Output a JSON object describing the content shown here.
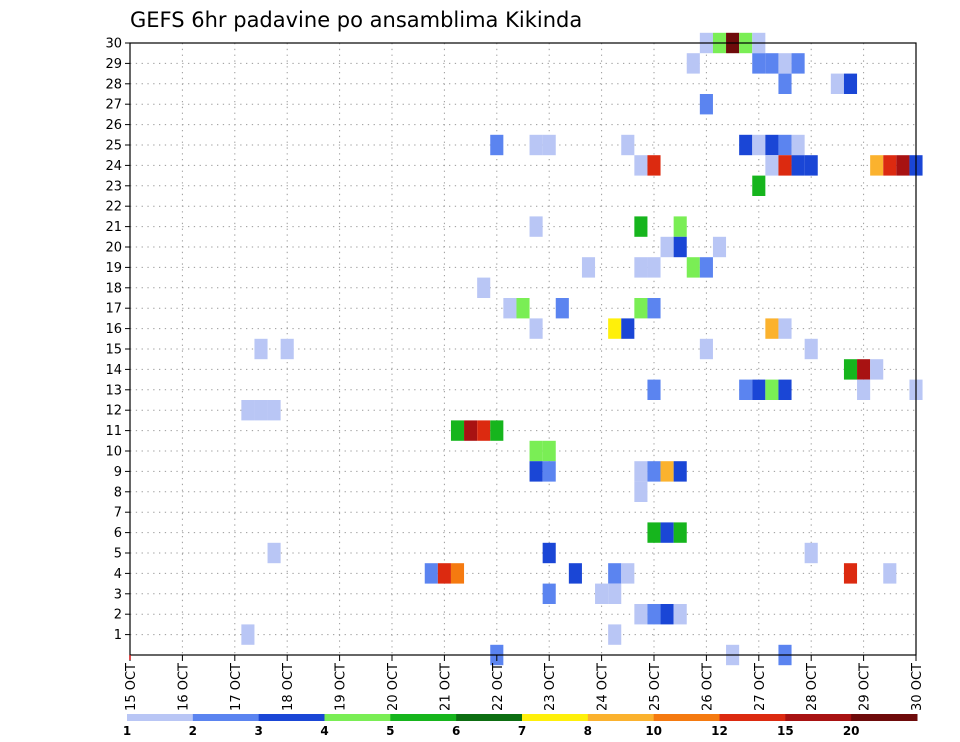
{
  "chart_data": {
    "type": "heatmap",
    "title": "GEFS 6hr padavine po ansamblima Kikinda",
    "xlabel": "",
    "ylabel": "",
    "grid": true,
    "y_tick_labels": [
      "1",
      "2",
      "3",
      "4",
      "5",
      "6",
      "7",
      "8",
      "9",
      "10",
      "11",
      "12",
      "13",
      "14",
      "15",
      "16",
      "17",
      "18",
      "19",
      "20",
      "21",
      "22",
      "23",
      "24",
      "25",
      "26",
      "27",
      "28",
      "29",
      "30"
    ],
    "ylim": [
      0,
      30
    ],
    "x_tick_labels": [
      "15 OCT",
      "16 OCT",
      "17 OCT",
      "18 OCT",
      "19 OCT",
      "20 OCT",
      "21 OCT",
      "22 OCT",
      "23 OCT",
      "24 OCT",
      "25 OCT",
      "26 OCT",
      "27 OCT",
      "28 OCT",
      "29 OCT",
      "30 OCT"
    ],
    "xlim_days": [
      15,
      30
    ],
    "colors": [
      "#b9c6f5",
      "#5b84f0",
      "#1a46d6",
      "#7aee55",
      "#16b51d",
      "#0d6e12",
      "#fff00a",
      "#fbb22e",
      "#f57a10",
      "#dc2a10",
      "#a81212",
      "#6e0b0b"
    ],
    "legend": {
      "labels": [
        "1",
        "2",
        "3",
        "4",
        "5",
        "6",
        "7",
        "8",
        "10",
        "12",
        "15",
        "20"
      ],
      "position": "bottom"
    },
    "cells": [
      [
        26.0,
        30,
        1
      ],
      [
        26.25,
        30,
        4
      ],
      [
        26.5,
        30,
        12
      ],
      [
        26.75,
        30,
        4
      ],
      [
        27.0,
        30,
        1
      ],
      [
        25.75,
        29,
        1
      ],
      [
        27.0,
        29,
        2
      ],
      [
        27.25,
        29,
        2
      ],
      [
        27.5,
        29,
        1
      ],
      [
        27.75,
        29,
        2
      ],
      [
        27.5,
        28,
        2
      ],
      [
        28.5,
        28,
        1
      ],
      [
        28.75,
        28,
        3
      ],
      [
        26.0,
        27,
        2
      ],
      [
        22.0,
        25,
        2
      ],
      [
        22.75,
        25,
        1
      ],
      [
        23.0,
        25,
        1
      ],
      [
        24.5,
        25,
        1
      ],
      [
        26.75,
        25,
        3
      ],
      [
        27.0,
        25,
        1
      ],
      [
        27.25,
        25,
        3
      ],
      [
        27.5,
        25,
        2
      ],
      [
        27.75,
        25,
        1
      ],
      [
        24.75,
        24,
        1
      ],
      [
        25.0,
        24,
        10
      ],
      [
        27.25,
        24,
        1
      ],
      [
        27.5,
        24,
        10
      ],
      [
        27.75,
        24,
        3
      ],
      [
        28.0,
        24,
        3
      ],
      [
        29.25,
        24,
        8
      ],
      [
        29.5,
        24,
        10
      ],
      [
        29.75,
        24,
        11
      ],
      [
        30.0,
        24,
        3
      ],
      [
        27.0,
        23,
        5
      ],
      [
        22.75,
        21,
        1
      ],
      [
        24.75,
        21,
        5
      ],
      [
        25.5,
        21,
        4
      ],
      [
        25.25,
        20,
        1
      ],
      [
        25.5,
        20,
        3
      ],
      [
        26.25,
        20,
        1
      ],
      [
        23.75,
        19,
        1
      ],
      [
        24.75,
        19,
        1
      ],
      [
        25.0,
        19,
        1
      ],
      [
        25.75,
        19,
        4
      ],
      [
        26.0,
        19,
        2
      ],
      [
        21.75,
        18,
        1
      ],
      [
        22.25,
        17,
        1
      ],
      [
        22.5,
        17,
        4
      ],
      [
        23.25,
        17,
        2
      ],
      [
        24.75,
        17,
        4
      ],
      [
        25.0,
        17,
        2
      ],
      [
        22.75,
        16,
        1
      ],
      [
        24.25,
        16,
        7
      ],
      [
        24.5,
        16,
        3
      ],
      [
        27.25,
        16,
        8
      ],
      [
        27.5,
        16,
        1
      ],
      [
        17.5,
        15,
        1
      ],
      [
        18.0,
        15,
        1
      ],
      [
        26.0,
        15,
        1
      ],
      [
        28.0,
        15,
        1
      ],
      [
        28.75,
        14,
        5
      ],
      [
        29.0,
        14,
        11
      ],
      [
        29.25,
        14,
        1
      ],
      [
        25.0,
        13,
        2
      ],
      [
        26.75,
        13,
        2
      ],
      [
        27.0,
        13,
        3
      ],
      [
        27.25,
        13,
        4
      ],
      [
        27.5,
        13,
        3
      ],
      [
        29.0,
        13,
        1
      ],
      [
        30.0,
        13,
        1
      ],
      [
        17.25,
        12,
        1
      ],
      [
        17.5,
        12,
        1
      ],
      [
        17.75,
        12,
        1
      ],
      [
        21.25,
        11,
        5
      ],
      [
        21.5,
        11,
        11
      ],
      [
        21.75,
        11,
        10
      ],
      [
        22.0,
        11,
        5
      ],
      [
        22.75,
        10,
        4
      ],
      [
        23.0,
        10,
        4
      ],
      [
        22.75,
        9,
        3
      ],
      [
        23.0,
        9,
        2
      ],
      [
        24.75,
        9,
        1
      ],
      [
        25.0,
        9,
        2
      ],
      [
        25.25,
        9,
        8
      ],
      [
        25.5,
        9,
        3
      ],
      [
        24.75,
        8,
        1
      ],
      [
        25.0,
        6,
        5
      ],
      [
        25.25,
        6,
        3
      ],
      [
        25.5,
        6,
        5
      ],
      [
        17.75,
        5,
        1
      ],
      [
        23.0,
        5,
        3
      ],
      [
        28.0,
        5,
        1
      ],
      [
        20.75,
        4,
        2
      ],
      [
        21.0,
        4,
        10
      ],
      [
        21.25,
        4,
        9
      ],
      [
        23.5,
        4,
        3
      ],
      [
        24.25,
        4,
        2
      ],
      [
        24.5,
        4,
        1
      ],
      [
        28.75,
        4,
        10
      ],
      [
        29.5,
        4,
        1
      ],
      [
        23.0,
        3,
        2
      ],
      [
        24.0,
        3,
        1
      ],
      [
        24.25,
        3,
        1
      ],
      [
        24.75,
        2,
        1
      ],
      [
        25.0,
        2,
        2
      ],
      [
        25.25,
        2,
        3
      ],
      [
        25.5,
        2,
        1
      ],
      [
        17.25,
        1,
        1
      ],
      [
        24.25,
        1,
        1
      ],
      [
        22.0,
        0,
        2
      ],
      [
        26.5,
        0,
        1
      ],
      [
        27.5,
        0,
        2
      ]
    ]
  }
}
